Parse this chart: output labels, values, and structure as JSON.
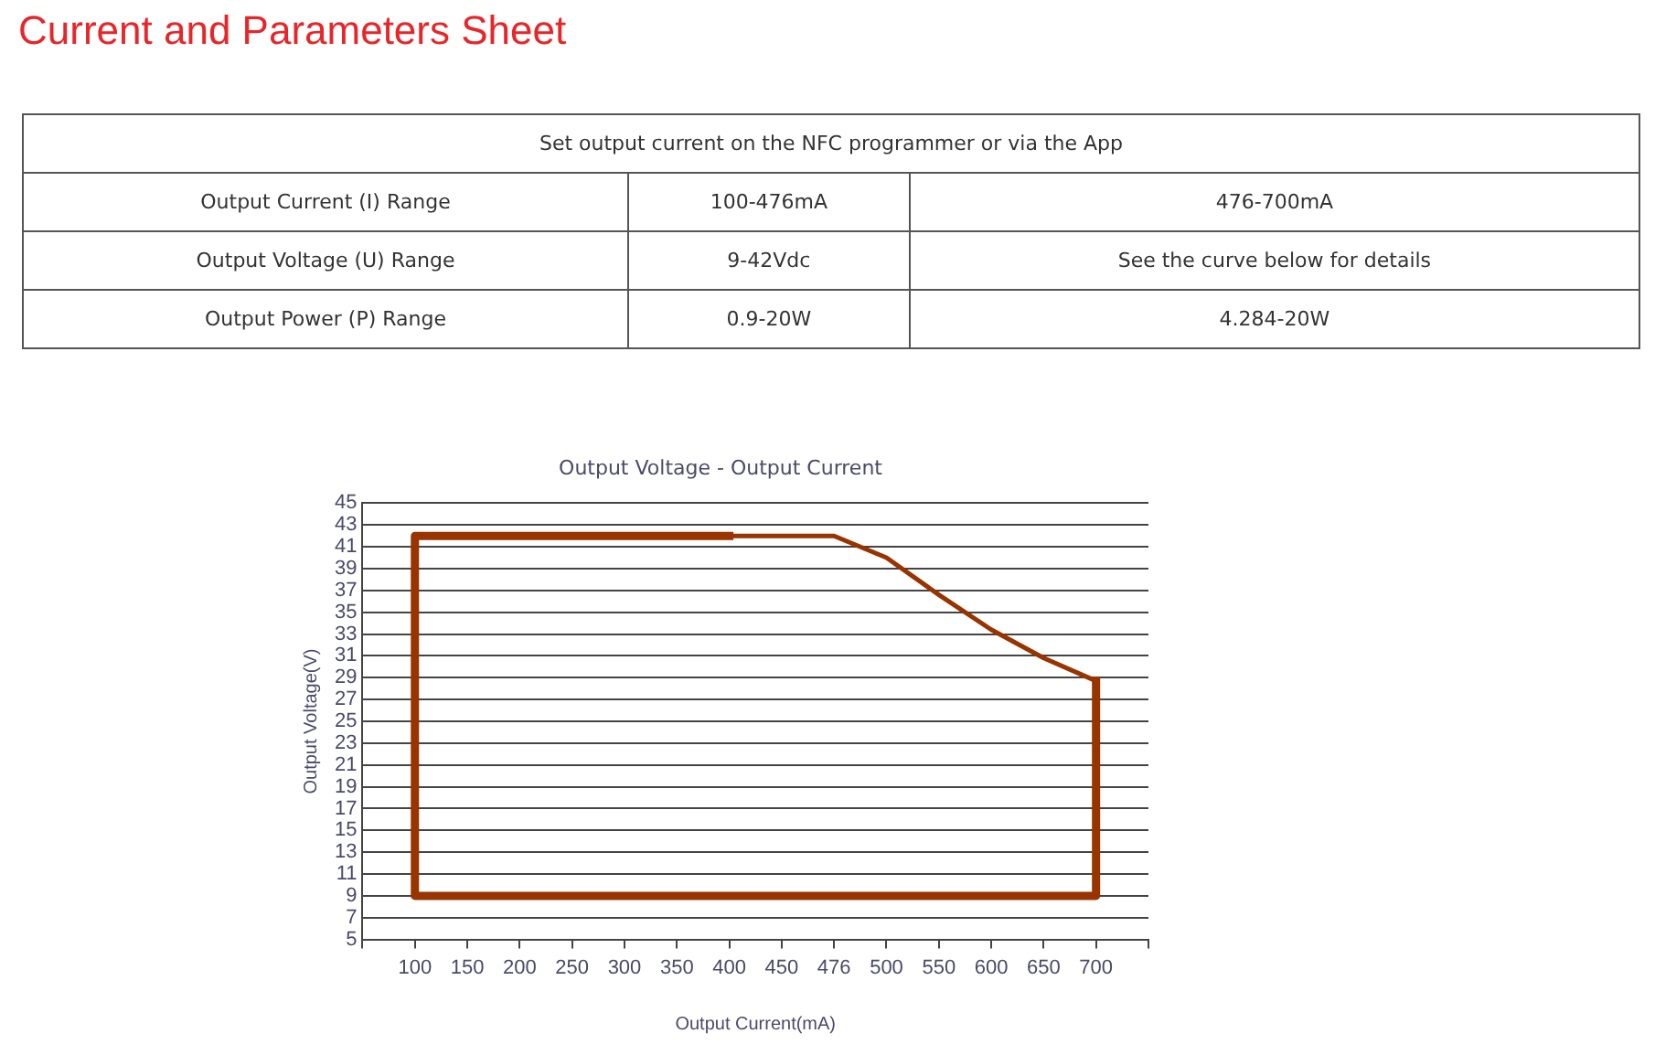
{
  "chart_data": {
    "type": "line",
    "title": "Output Voltage - Output Current",
    "xlabel": "Output Current(mA)",
    "ylabel": "Output Voltage(V)",
    "categories": [
      null,
      "100",
      "150",
      "200",
      "250",
      "300",
      "350",
      "400",
      "450",
      "476",
      "500",
      "550",
      "600",
      "650",
      "700",
      null
    ],
    "series": [
      {
        "color": "#993300",
        "x": [
          "400",
          "100",
          "100",
          "700",
          "700"
        ],
        "values": [
          42,
          42,
          9,
          9,
          28.7
        ]
      },
      {
        "color": "#993300",
        "x": [
          "400",
          "476",
          "500",
          "550",
          "600",
          "650",
          "700"
        ],
        "values": [
          42,
          42,
          40,
          36.6,
          33.4,
          30.8,
          28.7
        ]
      }
    ],
    "ylim": [
      5,
      45
    ],
    "yticks": [
      5,
      7,
      9,
      11,
      13,
      15,
      17,
      19,
      21,
      23,
      25,
      27,
      29,
      31,
      33,
      35,
      37,
      39,
      41,
      43,
      45
    ],
    "grid": "y",
    "legend": false,
    "marker": "none",
    "line_style": "solid",
    "annotations": [
      "Current and Parameters Sheet",
      "Set output current on the NFC programmer or via the App",
      "Output Current (I) Range",
      "100-476mA",
      "476-700mA",
      "Output Voltage (U) Range",
      "9-42Vdc",
      "See the curve below for details",
      "Output Power (P) Range",
      "0.9-20W",
      "4.284-20W"
    ]
  }
}
